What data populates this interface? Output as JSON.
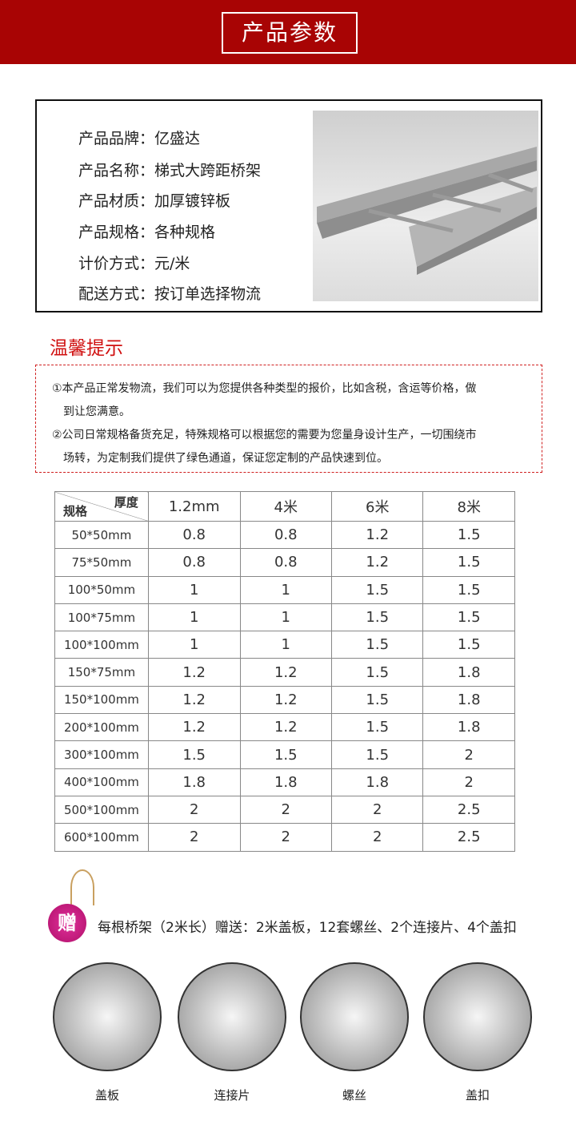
{
  "banner": {
    "title": "产品参数"
  },
  "info": [
    "产品品牌：亿盛达",
    "产品名称：梯式大跨距桥架",
    "产品材质：加厚镀锌板",
    "产品规格：各种规格",
    "计价方式：元/米",
    "配送方式：按订单选择物流"
  ],
  "tips": {
    "title": "温馨提示",
    "lines": [
      "①本产品正常发物流，我们可以为您提供各种类型的报价，比如含税，含运等价格，做",
      "到让您满意。",
      "②公司日常规格备货充足，特殊规格可以根据您的需要为您量身设计生产，一切围绕市",
      "场转，为定制我们提供了绿色通道，保证您定制的产品快速到位。"
    ]
  },
  "table": {
    "corner_top": "厚度",
    "corner_bottom": "规格",
    "columns": [
      "1.2mm",
      "4米",
      "6米",
      "8米"
    ],
    "rows": [
      [
        "50*50mm",
        "0.8",
        "0.8",
        "1.2",
        "1.5"
      ],
      [
        "75*50mm",
        "0.8",
        "0.8",
        "1.2",
        "1.5"
      ],
      [
        "100*50mm",
        "1",
        "1",
        "1.5",
        "1.5"
      ],
      [
        "100*75mm",
        "1",
        "1",
        "1.5",
        "1.5"
      ],
      [
        "100*100mm",
        "1",
        "1",
        "1.5",
        "1.5"
      ],
      [
        "150*75mm",
        "1.2",
        "1.2",
        "1.5",
        "1.8"
      ],
      [
        "150*100mm",
        "1.2",
        "1.2",
        "1.5",
        "1.8"
      ],
      [
        "200*100mm",
        "1.2",
        "1.2",
        "1.5",
        "1.8"
      ],
      [
        "300*100mm",
        "1.5",
        "1.5",
        "1.5",
        "2"
      ],
      [
        "400*100mm",
        "1.8",
        "1.8",
        "1.8",
        "2"
      ],
      [
        "500*100mm",
        "2",
        "2",
        "2",
        "2.5"
      ],
      [
        "600*100mm",
        "2",
        "2",
        "2",
        "2.5"
      ]
    ]
  },
  "gift": {
    "badge": "赠",
    "text": "每根桥架（2米长）赠送：2米盖板，12套螺丝、2个连接片、4个盖扣"
  },
  "accessories": [
    "盖板",
    "连接片",
    "螺丝",
    "盖扣"
  ],
  "colors": {
    "banner": "#a80404",
    "tip": "#d01010"
  }
}
